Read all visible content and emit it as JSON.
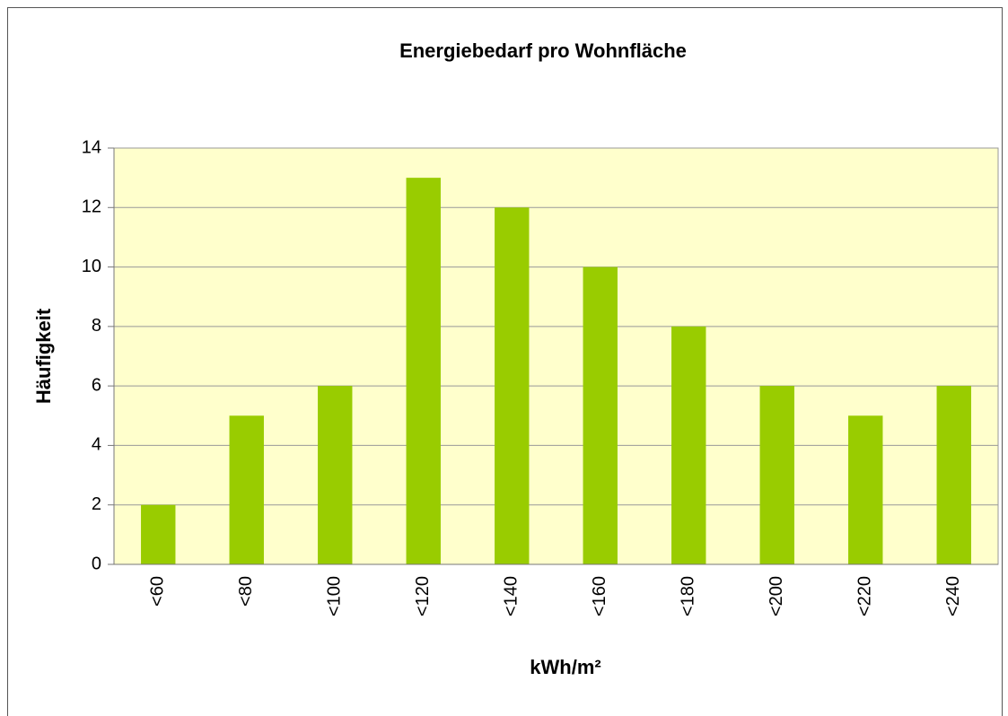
{
  "chart_data": {
    "type": "bar",
    "title": "Energiebedarf pro Wohnfläche",
    "x_label": "kWh/m²",
    "y_label": "Häufigkeit",
    "categories": [
      "<60",
      "<80",
      "<100",
      "<120",
      "<140",
      "<160",
      "<180",
      "<200",
      "<220",
      "<240"
    ],
    "values": [
      2,
      5,
      6,
      13,
      12,
      10,
      8,
      6,
      5,
      6
    ],
    "color": "#99cc00",
    "ylim": [
      0,
      14
    ],
    "yticks": [
      0,
      2,
      4,
      6,
      8,
      10,
      12,
      14
    ],
    "grid": true
  }
}
